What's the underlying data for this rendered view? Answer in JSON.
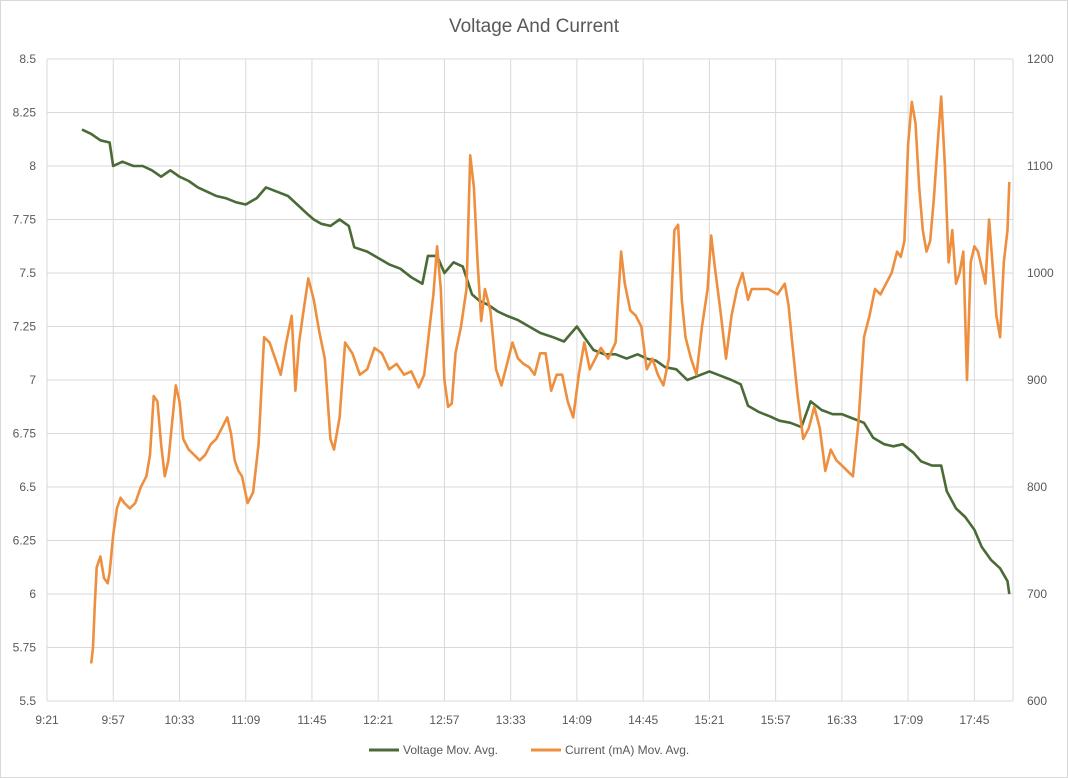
{
  "chart_data": {
    "type": "line",
    "title": "Voltage And Current",
    "xlabel": "",
    "ylabel": "",
    "y2label": "",
    "x_tick_labels": [
      "9:21",
      "9:57",
      "10:33",
      "11:09",
      "11:45",
      "12:21",
      "12:57",
      "13:33",
      "14:09",
      "14:45",
      "15:21",
      "15:57",
      "16:33",
      "17:09",
      "17:45"
    ],
    "x_range_minutes": [
      561,
      1086
    ],
    "y_ticks": [
      "5.5",
      "5.75",
      "6",
      "6.25",
      "6.5",
      "6.75",
      "7",
      "7.25",
      "7.5",
      "7.75",
      "8",
      "8.25",
      "8.5"
    ],
    "ylim": [
      5.5,
      8.5
    ],
    "y2_ticks": [
      "600",
      "700",
      "800",
      "900",
      "1000",
      "1100",
      "1200"
    ],
    "y2lim": [
      600,
      1200
    ],
    "grid": true,
    "legend_position": "bottom",
    "series": [
      {
        "name": "Voltage Mov. Avg.",
        "axis": "left",
        "color": "#4a6b35",
        "points": [
          [
            "9:40",
            8.17
          ],
          [
            "9:45",
            8.15
          ],
          [
            "9:50",
            8.12
          ],
          [
            "9:55",
            8.11
          ],
          [
            "9:57",
            8.0
          ],
          [
            "10:02",
            8.02
          ],
          [
            "10:08",
            8.0
          ],
          [
            "10:13",
            8.0
          ],
          [
            "10:18",
            7.98
          ],
          [
            "10:23",
            7.95
          ],
          [
            "10:28",
            7.98
          ],
          [
            "10:33",
            7.95
          ],
          [
            "10:38",
            7.93
          ],
          [
            "10:43",
            7.9
          ],
          [
            "10:48",
            7.88
          ],
          [
            "10:53",
            7.86
          ],
          [
            "10:58",
            7.85
          ],
          [
            "11:04",
            7.83
          ],
          [
            "11:09",
            7.82
          ],
          [
            "11:15",
            7.85
          ],
          [
            "11:20",
            7.9
          ],
          [
            "11:26",
            7.88
          ],
          [
            "11:32",
            7.86
          ],
          [
            "11:37",
            7.82
          ],
          [
            "11:42",
            7.78
          ],
          [
            "11:46",
            7.75
          ],
          [
            "11:50",
            7.73
          ],
          [
            "11:55",
            7.72
          ],
          [
            "12:00",
            7.75
          ],
          [
            "12:05",
            7.72
          ],
          [
            "12:08",
            7.62
          ],
          [
            "12:15",
            7.6
          ],
          [
            "12:21",
            7.57
          ],
          [
            "12:27",
            7.54
          ],
          [
            "12:33",
            7.52
          ],
          [
            "12:39",
            7.48
          ],
          [
            "12:45",
            7.45
          ],
          [
            "12:48",
            7.58
          ],
          [
            "12:53",
            7.58
          ],
          [
            "12:57",
            7.5
          ],
          [
            "13:02",
            7.55
          ],
          [
            "13:07",
            7.53
          ],
          [
            "13:12",
            7.4
          ],
          [
            "13:16",
            7.37
          ],
          [
            "13:21",
            7.35
          ],
          [
            "13:26",
            7.32
          ],
          [
            "13:31",
            7.3
          ],
          [
            "13:37",
            7.28
          ],
          [
            "13:43",
            7.25
          ],
          [
            "13:49",
            7.22
          ],
          [
            "13:56",
            7.2
          ],
          [
            "14:02",
            7.18
          ],
          [
            "14:09",
            7.25
          ],
          [
            "14:13",
            7.2
          ],
          [
            "14:18",
            7.14
          ],
          [
            "14:24",
            7.12
          ],
          [
            "14:30",
            7.12
          ],
          [
            "14:36",
            7.1
          ],
          [
            "14:42",
            7.12
          ],
          [
            "14:47",
            7.1
          ],
          [
            "14:52",
            7.09
          ],
          [
            "14:57",
            7.06
          ],
          [
            "15:03",
            7.05
          ],
          [
            "15:09",
            7.0
          ],
          [
            "15:15",
            7.02
          ],
          [
            "15:21",
            7.04
          ],
          [
            "15:27",
            7.02
          ],
          [
            "15:33",
            7.0
          ],
          [
            "15:38",
            6.98
          ],
          [
            "15:42",
            6.88
          ],
          [
            "15:48",
            6.85
          ],
          [
            "15:54",
            6.83
          ],
          [
            "15:59",
            6.81
          ],
          [
            "16:05",
            6.8
          ],
          [
            "16:11",
            6.78
          ],
          [
            "16:16",
            6.9
          ],
          [
            "16:22",
            6.86
          ],
          [
            "16:28",
            6.84
          ],
          [
            "16:33",
            6.84
          ],
          [
            "16:39",
            6.82
          ],
          [
            "16:45",
            6.8
          ],
          [
            "16:50",
            6.73
          ],
          [
            "16:56",
            6.7
          ],
          [
            "17:01",
            6.69
          ],
          [
            "17:06",
            6.7
          ],
          [
            "17:12",
            6.66
          ],
          [
            "17:16",
            6.62
          ],
          [
            "17:22",
            6.6
          ],
          [
            "17:27",
            6.6
          ],
          [
            "17:30",
            6.48
          ],
          [
            "17:35",
            6.4
          ],
          [
            "17:40",
            6.36
          ],
          [
            "17:45",
            6.3
          ],
          [
            "17:49",
            6.22
          ],
          [
            "17:54",
            6.16
          ],
          [
            "17:59",
            6.12
          ],
          [
            "18:03",
            6.06
          ],
          [
            "18:04",
            6.0
          ]
        ]
      },
      {
        "name": "Current (mA) Mov. Avg.",
        "axis": "right",
        "color": "#ed8f3e",
        "points": [
          [
            "9:45",
            635
          ],
          [
            "9:46",
            650
          ],
          [
            "9:47",
            690
          ],
          [
            "9:48",
            725
          ],
          [
            "9:50",
            735
          ],
          [
            "9:52",
            715
          ],
          [
            "9:54",
            710
          ],
          [
            "9:55",
            720
          ],
          [
            "9:57",
            755
          ],
          [
            "9:59",
            780
          ],
          [
            "10:01",
            790
          ],
          [
            "10:03",
            785
          ],
          [
            "10:06",
            780
          ],
          [
            "10:09",
            785
          ],
          [
            "10:12",
            800
          ],
          [
            "10:15",
            810
          ],
          [
            "10:17",
            830
          ],
          [
            "10:19",
            885
          ],
          [
            "10:21",
            880
          ],
          [
            "10:23",
            840
          ],
          [
            "10:25",
            810
          ],
          [
            "10:27",
            825
          ],
          [
            "10:29",
            860
          ],
          [
            "10:31",
            895
          ],
          [
            "10:33",
            880
          ],
          [
            "10:35",
            845
          ],
          [
            "10:38",
            835
          ],
          [
            "10:41",
            830
          ],
          [
            "10:44",
            825
          ],
          [
            "10:47",
            830
          ],
          [
            "10:50",
            840
          ],
          [
            "10:53",
            845
          ],
          [
            "10:56",
            855
          ],
          [
            "10:59",
            865
          ],
          [
            "11:01",
            850
          ],
          [
            "11:03",
            825
          ],
          [
            "11:05",
            815
          ],
          [
            "11:07",
            810
          ],
          [
            "11:10",
            785
          ],
          [
            "11:13",
            795
          ],
          [
            "11:16",
            840
          ],
          [
            "11:19",
            940
          ],
          [
            "11:22",
            935
          ],
          [
            "11:25",
            920
          ],
          [
            "11:28",
            905
          ],
          [
            "11:31",
            935
          ],
          [
            "11:34",
            960
          ],
          [
            "11:36",
            890
          ],
          [
            "11:38",
            935
          ],
          [
            "11:40",
            960
          ],
          [
            "11:43",
            995
          ],
          [
            "11:46",
            975
          ],
          [
            "11:49",
            945
          ],
          [
            "11:52",
            920
          ],
          [
            "11:55",
            845
          ],
          [
            "11:57",
            835
          ],
          [
            "12:00",
            865
          ],
          [
            "12:03",
            935
          ],
          [
            "12:07",
            925
          ],
          [
            "12:11",
            905
          ],
          [
            "12:15",
            910
          ],
          [
            "12:19",
            930
          ],
          [
            "12:23",
            925
          ],
          [
            "12:27",
            910
          ],
          [
            "12:31",
            915
          ],
          [
            "12:35",
            905
          ],
          [
            "12:39",
            908
          ],
          [
            "12:43",
            893
          ],
          [
            "12:46",
            905
          ],
          [
            "12:49",
            950
          ],
          [
            "12:51",
            980
          ],
          [
            "12:53",
            1025
          ],
          [
            "12:55",
            985
          ],
          [
            "12:57",
            900
          ],
          [
            "12:59",
            875
          ],
          [
            "13:01",
            878
          ],
          [
            "13:03",
            925
          ],
          [
            "13:06",
            950
          ],
          [
            "13:09",
            985
          ],
          [
            "13:11",
            1110
          ],
          [
            "13:13",
            1080
          ],
          [
            "13:15",
            1010
          ],
          [
            "13:17",
            955
          ],
          [
            "13:19",
            985
          ],
          [
            "13:22",
            965
          ],
          [
            "13:25",
            910
          ],
          [
            "13:28",
            895
          ],
          [
            "13:31",
            915
          ],
          [
            "13:34",
            935
          ],
          [
            "13:37",
            920
          ],
          [
            "13:40",
            915
          ],
          [
            "13:43",
            912
          ],
          [
            "13:46",
            905
          ],
          [
            "13:49",
            925
          ],
          [
            "13:52",
            925
          ],
          [
            "13:55",
            890
          ],
          [
            "13:58",
            905
          ],
          [
            "14:01",
            905
          ],
          [
            "14:04",
            880
          ],
          [
            "14:07",
            865
          ],
          [
            "14:10",
            905
          ],
          [
            "14:13",
            935
          ],
          [
            "14:16",
            910
          ],
          [
            "14:19",
            920
          ],
          [
            "14:22",
            930
          ],
          [
            "14:26",
            920
          ],
          [
            "14:30",
            935
          ],
          [
            "14:33",
            1020
          ],
          [
            "14:35",
            990
          ],
          [
            "14:38",
            965
          ],
          [
            "14:41",
            960
          ],
          [
            "14:44",
            950
          ],
          [
            "14:47",
            910
          ],
          [
            "14:50",
            920
          ],
          [
            "14:53",
            905
          ],
          [
            "14:56",
            895
          ],
          [
            "14:59",
            920
          ],
          [
            "15:02",
            1040
          ],
          [
            "15:04",
            1045
          ],
          [
            "15:06",
            975
          ],
          [
            "15:08",
            940
          ],
          [
            "15:11",
            920
          ],
          [
            "15:14",
            905
          ],
          [
            "15:17",
            950
          ],
          [
            "15:20",
            985
          ],
          [
            "15:22",
            1035
          ],
          [
            "15:24",
            1005
          ],
          [
            "15:27",
            965
          ],
          [
            "15:30",
            920
          ],
          [
            "15:33",
            960
          ],
          [
            "15:36",
            985
          ],
          [
            "15:39",
            1000
          ],
          [
            "15:42",
            975
          ],
          [
            "15:44",
            985
          ],
          [
            "15:48",
            985
          ],
          [
            "15:53",
            985
          ],
          [
            "15:58",
            980
          ],
          [
            "16:02",
            990
          ],
          [
            "16:04",
            970
          ],
          [
            "16:06",
            935
          ],
          [
            "16:09",
            885
          ],
          [
            "16:12",
            845
          ],
          [
            "16:15",
            855
          ],
          [
            "16:18",
            875
          ],
          [
            "16:21",
            855
          ],
          [
            "16:24",
            815
          ],
          [
            "16:27",
            835
          ],
          [
            "16:30",
            825
          ],
          [
            "16:33",
            820
          ],
          [
            "16:36",
            815
          ],
          [
            "16:39",
            810
          ],
          [
            "16:42",
            860
          ],
          [
            "16:45",
            940
          ],
          [
            "16:48",
            960
          ],
          [
            "16:51",
            985
          ],
          [
            "16:54",
            980
          ],
          [
            "16:57",
            990
          ],
          [
            "17:00",
            1000
          ],
          [
            "17:03",
            1020
          ],
          [
            "17:05",
            1015
          ],
          [
            "17:07",
            1030
          ],
          [
            "17:09",
            1120
          ],
          [
            "17:11",
            1160
          ],
          [
            "17:13",
            1140
          ],
          [
            "17:15",
            1080
          ],
          [
            "17:17",
            1040
          ],
          [
            "17:19",
            1020
          ],
          [
            "17:21",
            1030
          ],
          [
            "17:23",
            1070
          ],
          [
            "17:25",
            1120
          ],
          [
            "17:27",
            1165
          ],
          [
            "17:29",
            1100
          ],
          [
            "17:31",
            1010
          ],
          [
            "17:33",
            1040
          ],
          [
            "17:35",
            990
          ],
          [
            "17:37",
            1000
          ],
          [
            "17:39",
            1020
          ],
          [
            "17:41",
            900
          ],
          [
            "17:43",
            1010
          ],
          [
            "17:45",
            1025
          ],
          [
            "17:47",
            1020
          ],
          [
            "17:49",
            1005
          ],
          [
            "17:51",
            990
          ],
          [
            "17:53",
            1050
          ],
          [
            "17:55",
            1005
          ],
          [
            "17:57",
            960
          ],
          [
            "17:59",
            940
          ],
          [
            "18:01",
            1010
          ],
          [
            "18:03",
            1040
          ],
          [
            "18:04",
            1085
          ]
        ]
      }
    ]
  }
}
